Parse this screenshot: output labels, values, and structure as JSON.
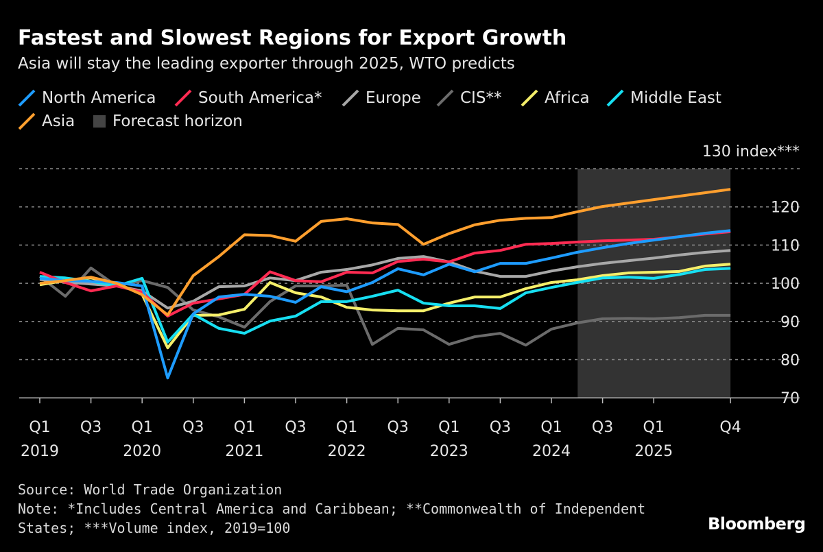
{
  "chart_data": {
    "type": "line",
    "title": "Fastest and Slowest Regions for Export Growth",
    "subtitle": "Asia will stay the leading exporter through 2025, WTO predicts",
    "ylabel": "130 index***",
    "ylim": [
      70,
      130
    ],
    "yticks": [
      130,
      120,
      110,
      100,
      90,
      80,
      70
    ],
    "grid": true,
    "legend_position": "top-left",
    "x": [
      "Q1 2019",
      "Q2 2019",
      "Q3 2019",
      "Q4 2019",
      "Q1 2020",
      "Q2 2020",
      "Q3 2020",
      "Q4 2020",
      "Q1 2021",
      "Q2 2021",
      "Q3 2021",
      "Q4 2021",
      "Q1 2022",
      "Q2 2022",
      "Q3 2022",
      "Q4 2022",
      "Q1 2023",
      "Q2 2023",
      "Q3 2023",
      "Q4 2023",
      "Q1 2024",
      "Q2 2024",
      "Q3 2024",
      "Q4 2024",
      "Q1 2025",
      "Q2 2025",
      "Q3 2025",
      "Q4 2025"
    ],
    "xticks": [
      {
        "index": 0,
        "q": "Q1",
        "year": "2019"
      },
      {
        "index": 2,
        "q": "Q3",
        "year": ""
      },
      {
        "index": 4,
        "q": "Q1",
        "year": "2020"
      },
      {
        "index": 6,
        "q": "Q3",
        "year": ""
      },
      {
        "index": 8,
        "q": "Q1",
        "year": "2021"
      },
      {
        "index": 10,
        "q": "Q3",
        "year": ""
      },
      {
        "index": 12,
        "q": "Q1",
        "year": "2022"
      },
      {
        "index": 14,
        "q": "Q3",
        "year": ""
      },
      {
        "index": 16,
        "q": "Q1",
        "year": "2023"
      },
      {
        "index": 18,
        "q": "Q3",
        "year": ""
      },
      {
        "index": 20,
        "q": "Q1",
        "year": "2024"
      },
      {
        "index": 22,
        "q": "Q3",
        "year": ""
      },
      {
        "index": 24,
        "q": "Q1",
        "year": "2025"
      },
      {
        "index": 27,
        "q": "Q4",
        "year": ""
      }
    ],
    "forecast_horizon": {
      "label": "Forecast horizon",
      "from": "Q2 2024",
      "to": "Q4 2025",
      "color": "#333333"
    },
    "series": [
      {
        "name": "CIS**",
        "color": "#6b6b6b",
        "values": [
          101.8,
          96.6,
          104,
          99.3,
          100.7,
          98.9,
          93,
          91.2,
          88.5,
          95.2,
          99.3,
          99.3,
          99.5,
          84,
          88.2,
          87.8,
          84,
          86,
          86.9,
          83.8,
          88,
          89.6,
          90.7,
          90.8,
          90.7,
          91,
          91.6,
          91.6
        ]
      },
      {
        "name": "Europe",
        "color": "#a8a8a8",
        "values": [
          101,
          100.3,
          99.8,
          99.3,
          98,
          93.5,
          95.3,
          99.1,
          99.3,
          101.4,
          100.7,
          102.9,
          103.6,
          104.8,
          106.5,
          107,
          105.6,
          103.2,
          101.8,
          101.8,
          103.2,
          104.3,
          105.2,
          105.9,
          106.6,
          107.4,
          108.1,
          108.6
        ]
      },
      {
        "name": "Africa",
        "color": "#f5ef6a",
        "values": [
          99.6,
          100.7,
          101.4,
          100,
          97.1,
          83.1,
          91.6,
          91.7,
          93.2,
          100.2,
          97.5,
          96.4,
          93.7,
          93,
          92.8,
          92.8,
          94.8,
          96.4,
          96.4,
          98.6,
          100.2,
          100.9,
          102,
          102.7,
          102.9,
          103.1,
          104.5,
          105
        ]
      },
      {
        "name": "Middle East",
        "color": "#17dff2",
        "values": [
          101.8,
          101.4,
          100.5,
          99.3,
          101.3,
          84.6,
          91.9,
          88.2,
          86.9,
          90.1,
          91.4,
          95.2,
          95.2,
          96.6,
          98.2,
          94.8,
          94.1,
          94.1,
          93.4,
          97.5,
          98.9,
          100.2,
          101.4,
          101.6,
          101.3,
          102.3,
          103.6,
          103.9
        ]
      },
      {
        "name": "South America*",
        "color": "#ff2b52",
        "values": [
          102.9,
          100.2,
          98,
          99.3,
          97.7,
          91.4,
          94.8,
          95.9,
          97.1,
          103,
          100.7,
          100.4,
          102.9,
          102.7,
          105.7,
          106.3,
          105.6,
          107.9,
          108.6,
          110.2,
          110.4,
          110.8,
          111.1,
          111.3,
          111.5,
          112.2,
          112.9,
          113.5
        ]
      },
      {
        "name": "North America",
        "color": "#1e9cff",
        "values": [
          101.3,
          100.7,
          100.5,
          100.2,
          99.3,
          75.2,
          92,
          96.4,
          97.1,
          96.6,
          95,
          99.1,
          97.8,
          100.2,
          103.8,
          102.2,
          105,
          103,
          105.2,
          105.2,
          106.6,
          108.1,
          109.3,
          110.4,
          111.3,
          112.2,
          113.1,
          113.8
        ]
      },
      {
        "name": "Asia",
        "color": "#ff9f2e",
        "values": [
          100,
          100.7,
          101.6,
          100,
          97,
          91.7,
          102,
          107,
          112.7,
          112.5,
          111,
          116.2,
          116.9,
          115.8,
          115.4,
          110.2,
          113,
          115.3,
          116.5,
          117,
          117.2,
          118.7,
          120.1,
          121,
          121.9,
          122.8,
          123.7,
          124.6
        ]
      }
    ],
    "legend": [
      "North America",
      "South America*",
      "Europe",
      "CIS**",
      "Africa",
      "Middle East",
      "Asia",
      "Forecast horizon"
    ]
  },
  "footer": {
    "source": "Source: World Trade Organization",
    "note_line1": "Note: *Includes Central America and Caribbean; **Commonwealth of Independent",
    "note_line2": "States; ***Volume index, 2019=100",
    "brand": "Bloomberg"
  }
}
